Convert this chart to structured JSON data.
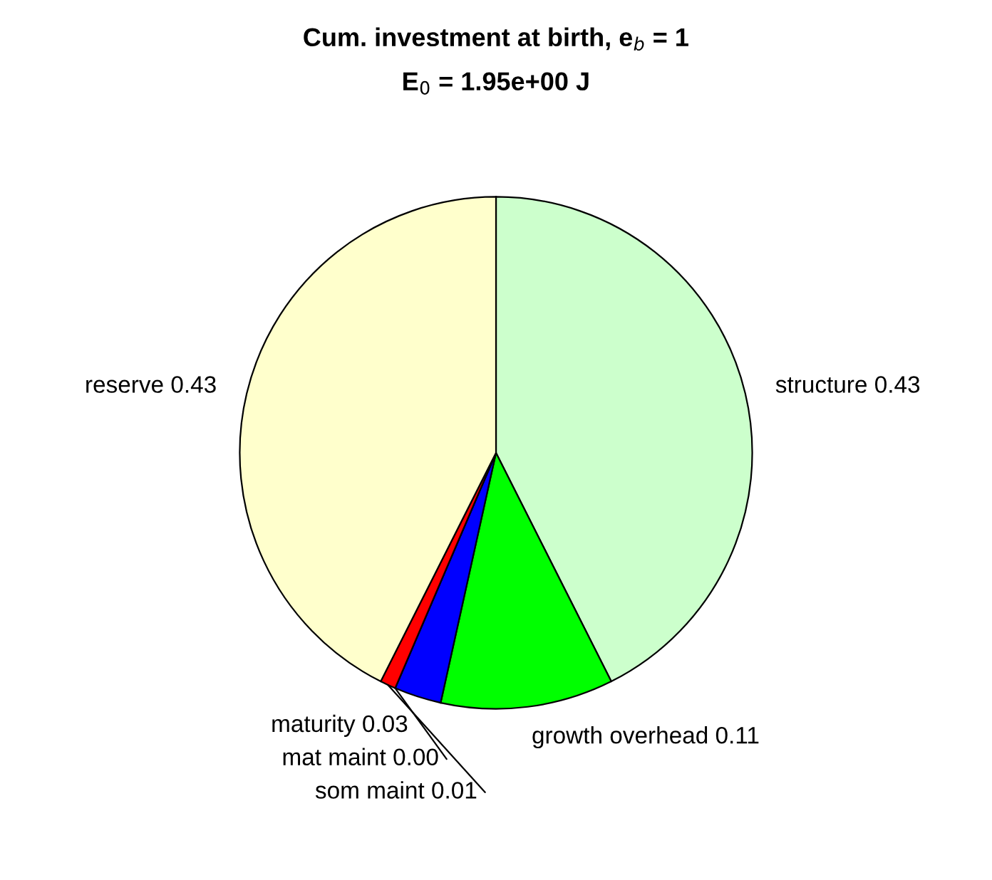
{
  "chart_data": {
    "type": "pie",
    "title": "Cum. investment at birth, e$_{b}$ = 1",
    "subtitle": "E$_{0}$ = 1.95e+00 J",
    "categories": [
      "structure",
      "growth overhead",
      "maturity",
      "mat maint",
      "som maint",
      "reserve"
    ],
    "values": [
      0.43,
      0.11,
      0.03,
      0.0,
      0.01,
      0.43
    ],
    "value_labels": [
      "0.43",
      "0.11",
      "0.03",
      "0.00",
      "0.01",
      "0.43"
    ],
    "colors": [
      "#ccffcc",
      "#00ff00",
      "#0000ff",
      "#800080",
      "#ff0000",
      "#ffffcc"
    ],
    "legend": false
  }
}
